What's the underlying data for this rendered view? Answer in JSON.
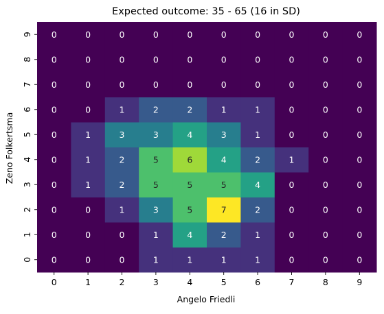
{
  "chart_data": {
    "type": "heatmap",
    "title": "Expected outcome: 35 - 65 (16 in SD)",
    "xlabel": "Angelo Friedli",
    "ylabel": "Zeno Folkertsma",
    "x_ticks": [
      "0",
      "1",
      "2",
      "3",
      "4",
      "5",
      "6",
      "7",
      "8",
      "9"
    ],
    "y_ticks": [
      "0",
      "1",
      "2",
      "3",
      "4",
      "5",
      "6",
      "7",
      "8",
      "9"
    ],
    "vmin": 0,
    "vmax": 7,
    "colormap": "viridis",
    "grid": false,
    "legend": "none",
    "rows": [
      {
        "y": "0",
        "values": [
          0,
          0,
          0,
          1,
          1,
          1,
          1,
          0,
          0,
          0
        ]
      },
      {
        "y": "1",
        "values": [
          0,
          0,
          0,
          1,
          4,
          2,
          1,
          0,
          0,
          0
        ]
      },
      {
        "y": "2",
        "values": [
          0,
          0,
          1,
          3,
          5,
          7,
          2,
          0,
          0,
          0
        ]
      },
      {
        "y": "3",
        "values": [
          0,
          1,
          2,
          5,
          5,
          5,
          4,
          0,
          0,
          0
        ]
      },
      {
        "y": "4",
        "values": [
          0,
          1,
          2,
          5,
          6,
          4,
          2,
          1,
          0,
          0
        ]
      },
      {
        "y": "5",
        "values": [
          0,
          1,
          3,
          3,
          4,
          3,
          1,
          0,
          0,
          0
        ]
      },
      {
        "y": "6",
        "values": [
          0,
          0,
          1,
          2,
          2,
          1,
          1,
          0,
          0,
          0
        ]
      },
      {
        "y": "7",
        "values": [
          0,
          0,
          0,
          0,
          0,
          0,
          0,
          0,
          0,
          0
        ]
      },
      {
        "y": "8",
        "values": [
          0,
          0,
          0,
          0,
          0,
          0,
          0,
          0,
          0,
          0
        ]
      },
      {
        "y": "9",
        "values": [
          0,
          0,
          0,
          0,
          0,
          0,
          0,
          0,
          0,
          0
        ]
      }
    ]
  }
}
